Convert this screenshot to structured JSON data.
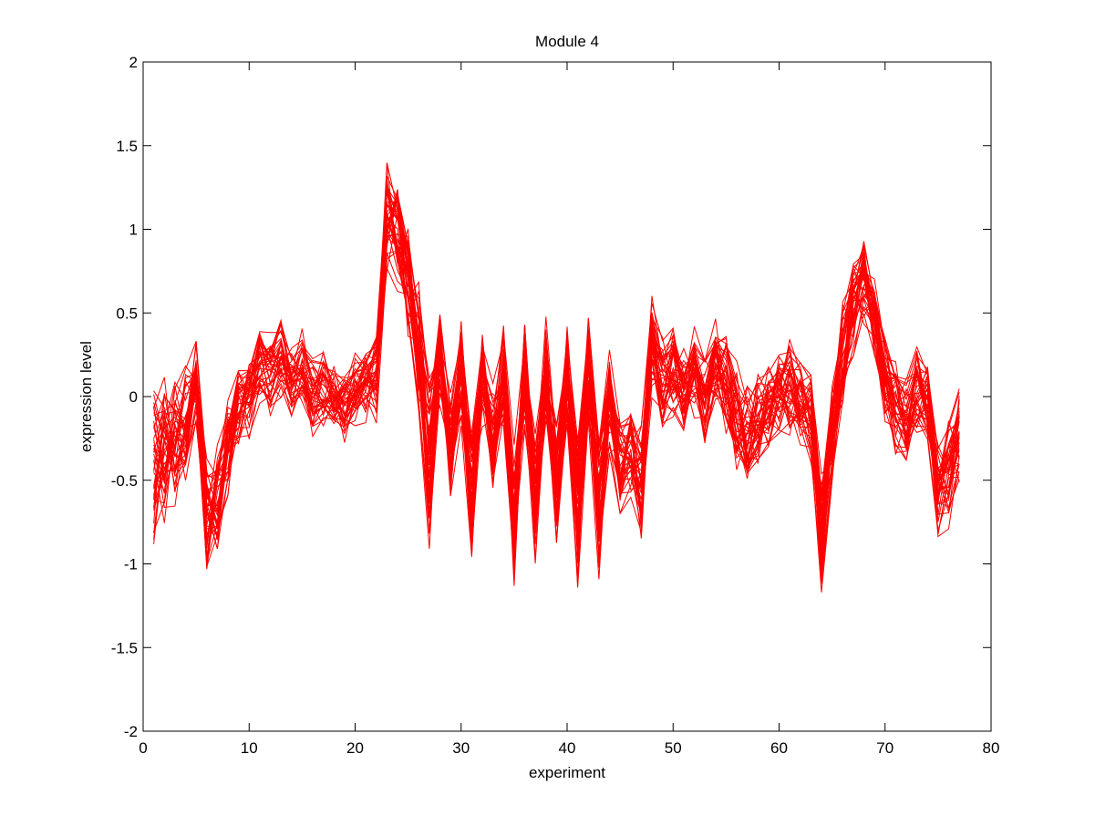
{
  "chart_data": {
    "type": "line",
    "title": "Module 4",
    "xlabel": "experiment",
    "ylabel": "expression level",
    "xlim": [
      0,
      80
    ],
    "ylim": [
      -2,
      2
    ],
    "xticks": [
      0,
      10,
      20,
      30,
      40,
      50,
      60,
      70,
      80
    ],
    "yticks": [
      -2,
      -1.5,
      -1,
      -0.5,
      0,
      0.5,
      1,
      1.5,
      2
    ],
    "xtick_labels": [
      "0",
      "10",
      "20",
      "30",
      "40",
      "50",
      "60",
      "70",
      "80"
    ],
    "ytick_labels": [
      "-2",
      "-1.5",
      "-1",
      "-0.5",
      "0",
      "0.5",
      "1",
      "1.5",
      "2"
    ],
    "grid": false,
    "legend": "none",
    "line_color": "#ff0000",
    "series_count": 40,
    "x": [
      1,
      2,
      3,
      4,
      5,
      6,
      7,
      8,
      9,
      10,
      11,
      12,
      13,
      14,
      15,
      16,
      17,
      18,
      19,
      20,
      21,
      22,
      23,
      24,
      25,
      26,
      27,
      28,
      29,
      30,
      31,
      32,
      33,
      34,
      35,
      36,
      37,
      38,
      39,
      40,
      41,
      42,
      43,
      44,
      45,
      46,
      47,
      48,
      49,
      50,
      51,
      52,
      53,
      54,
      55,
      56,
      57,
      58,
      59,
      60,
      61,
      62,
      63,
      64,
      65,
      66,
      67,
      68,
      69,
      70,
      71,
      72,
      73,
      74,
      75,
      76,
      77
    ],
    "mean_profile": [
      -0.4,
      -0.3,
      -0.25,
      -0.15,
      0.1,
      -0.75,
      -0.6,
      -0.3,
      -0.05,
      0.0,
      0.2,
      0.15,
      0.25,
      0.1,
      0.15,
      0.0,
      0.05,
      0.0,
      -0.05,
      0.05,
      0.1,
      0.15,
      1.1,
      1.0,
      0.7,
      0.3,
      -0.35,
      0.25,
      -0.3,
      0.15,
      -0.6,
      0.15,
      -0.25,
      0.1,
      -0.7,
      0.15,
      -0.6,
      0.2,
      -0.55,
      0.15,
      -0.7,
      0.15,
      -0.65,
      -0.05,
      -0.4,
      -0.3,
      -0.5,
      0.3,
      0.1,
      0.15,
      0.05,
      0.15,
      0.0,
      0.2,
      0.1,
      -0.1,
      -0.2,
      -0.15,
      -0.05,
      0.0,
      0.05,
      0.0,
      -0.1,
      -0.8,
      -0.2,
      0.25,
      0.55,
      0.7,
      0.45,
      0.1,
      -0.05,
      -0.15,
      0.05,
      0.0,
      -0.55,
      -0.45,
      -0.25
    ],
    "spread_profile": [
      0.45,
      0.35,
      0.3,
      0.25,
      0.15,
      0.3,
      0.25,
      0.2,
      0.2,
      0.15,
      0.15,
      0.15,
      0.15,
      0.15,
      0.15,
      0.15,
      0.15,
      0.15,
      0.15,
      0.15,
      0.15,
      0.2,
      0.25,
      0.3,
      0.3,
      0.3,
      0.45,
      0.25,
      0.25,
      0.25,
      0.35,
      0.25,
      0.25,
      0.25,
      0.35,
      0.25,
      0.35,
      0.25,
      0.35,
      0.25,
      0.4,
      0.25,
      0.35,
      0.25,
      0.25,
      0.25,
      0.3,
      0.25,
      0.2,
      0.2,
      0.2,
      0.2,
      0.2,
      0.2,
      0.25,
      0.25,
      0.25,
      0.2,
      0.2,
      0.2,
      0.2,
      0.2,
      0.25,
      0.3,
      0.25,
      0.25,
      0.25,
      0.2,
      0.2,
      0.2,
      0.2,
      0.2,
      0.2,
      0.2,
      0.2,
      0.25,
      0.25
    ]
  }
}
